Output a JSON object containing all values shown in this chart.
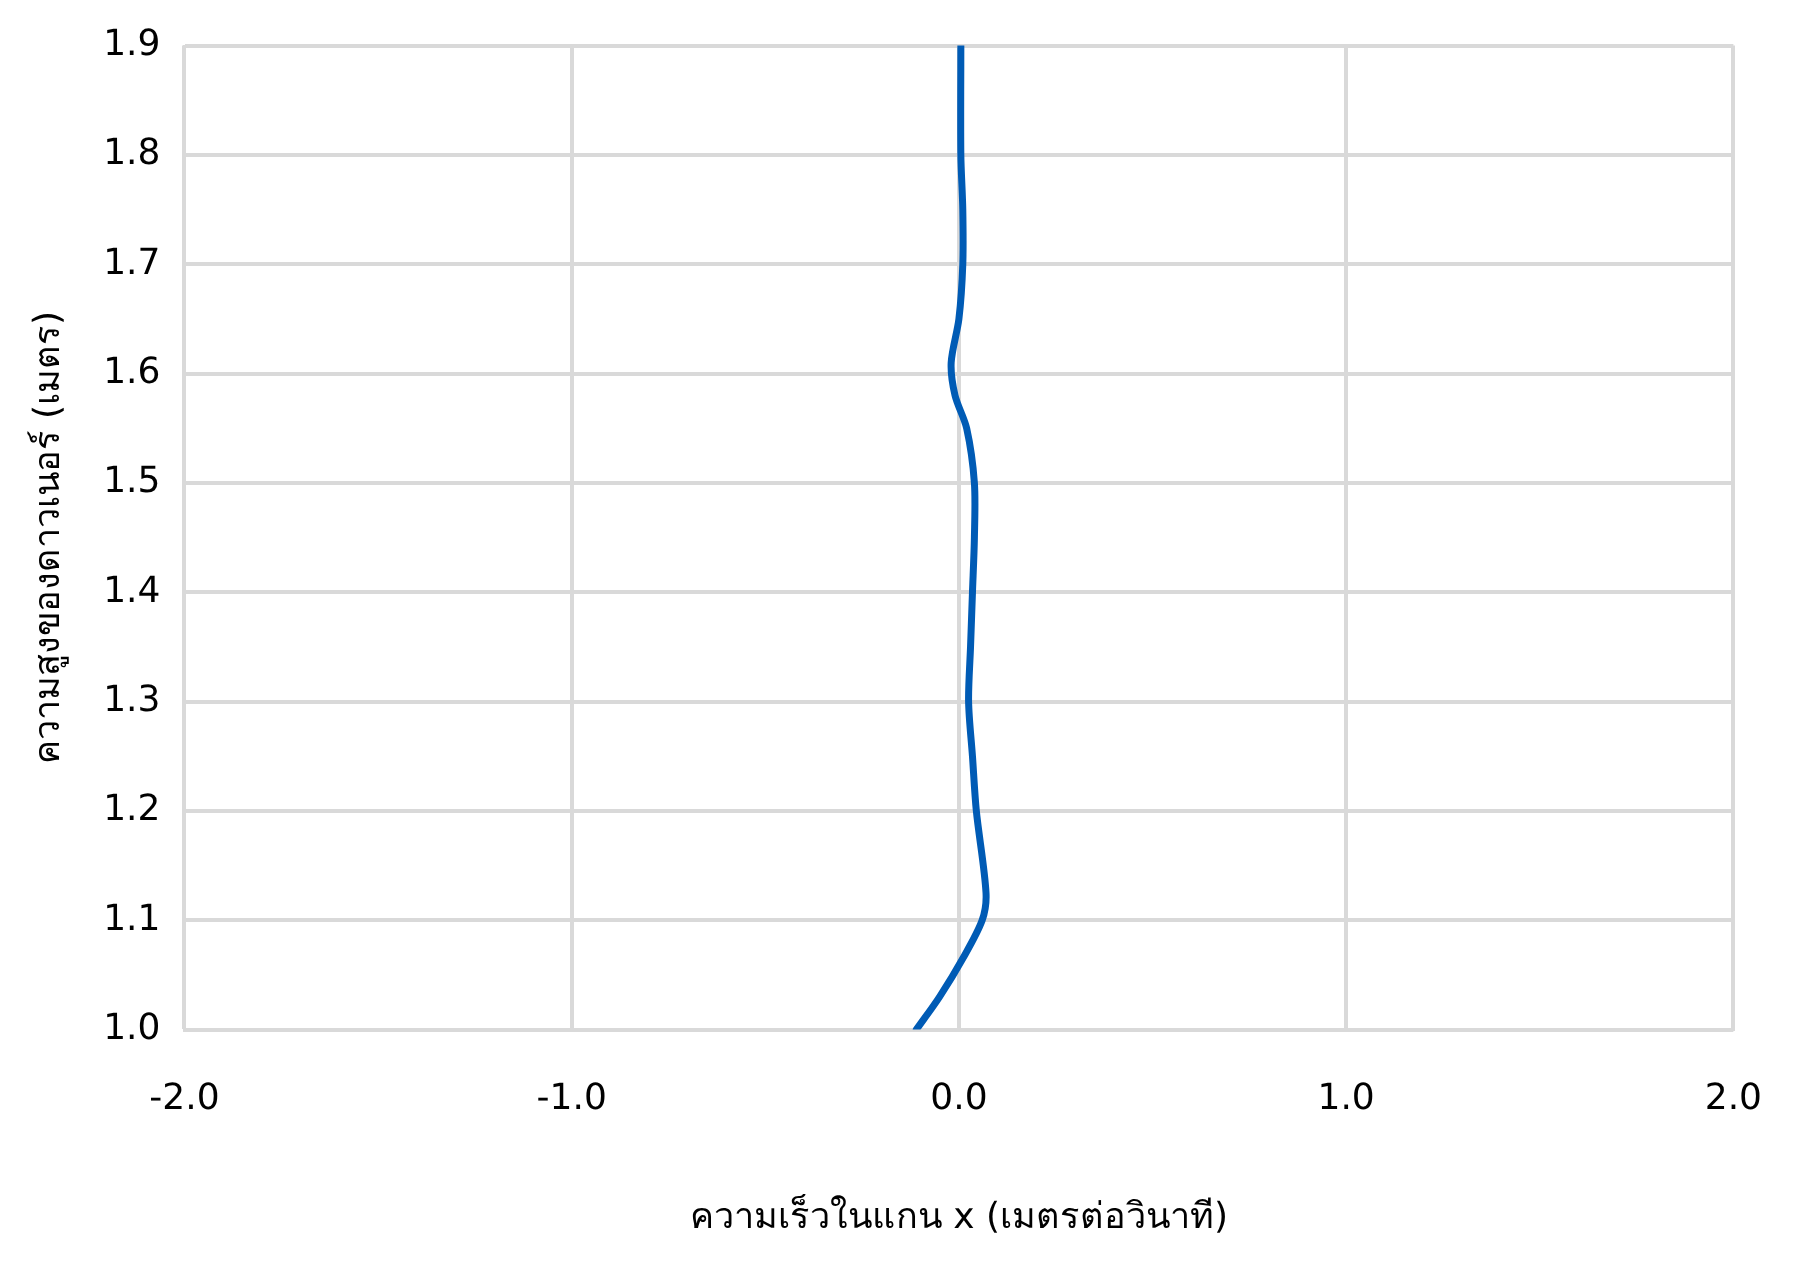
{
  "chart_data": {
    "type": "line",
    "xlabel": "ความเร็วในแกน x (เมตรต่อวินาที)",
    "ylabel": "ความสูงของดาวเนอร์ (เมตร)",
    "series": [
      {
        "color": "#005bb5",
        "x": [
          -0.11,
          -0.05,
          0.01,
          0.06,
          0.07,
          0.045,
          0.035,
          0.025,
          0.03,
          0.035,
          0.04,
          0.04,
          0.02,
          -0.01,
          -0.02,
          0.0,
          0.01,
          0.01,
          0.005,
          0.005
        ],
        "values": [
          1.0,
          1.03,
          1.065,
          1.1,
          1.125,
          1.2,
          1.25,
          1.3,
          1.35,
          1.4,
          1.45,
          1.5,
          1.55,
          1.58,
          1.61,
          1.65,
          1.7,
          1.75,
          1.8,
          1.9
        ]
      }
    ],
    "xlim": [
      -2,
      2
    ],
    "xticks": [
      {
        "value": -2,
        "label": "-2.0"
      },
      {
        "value": -1,
        "label": "-1.0"
      },
      {
        "value": 0,
        "label": "0.0"
      },
      {
        "value": 1,
        "label": "1.0"
      },
      {
        "value": 2,
        "label": "2.0"
      }
    ],
    "ylim": [
      1.0,
      1.9
    ],
    "yticks": [
      {
        "value": 1.0,
        "label": "1.0"
      },
      {
        "value": 1.1,
        "label": "1.1"
      },
      {
        "value": 1.2,
        "label": "1.2"
      },
      {
        "value": 1.3,
        "label": "1.3"
      },
      {
        "value": 1.4,
        "label": "1.4"
      },
      {
        "value": 1.5,
        "label": "1.5"
      },
      {
        "value": 1.6,
        "label": "1.6"
      },
      {
        "value": 1.7,
        "label": "1.7"
      },
      {
        "value": 1.8,
        "label": "1.8"
      },
      {
        "value": 1.9,
        "label": "1.9"
      }
    ],
    "grid": true,
    "legend": false,
    "marker": "none",
    "line_style": "solid"
  }
}
